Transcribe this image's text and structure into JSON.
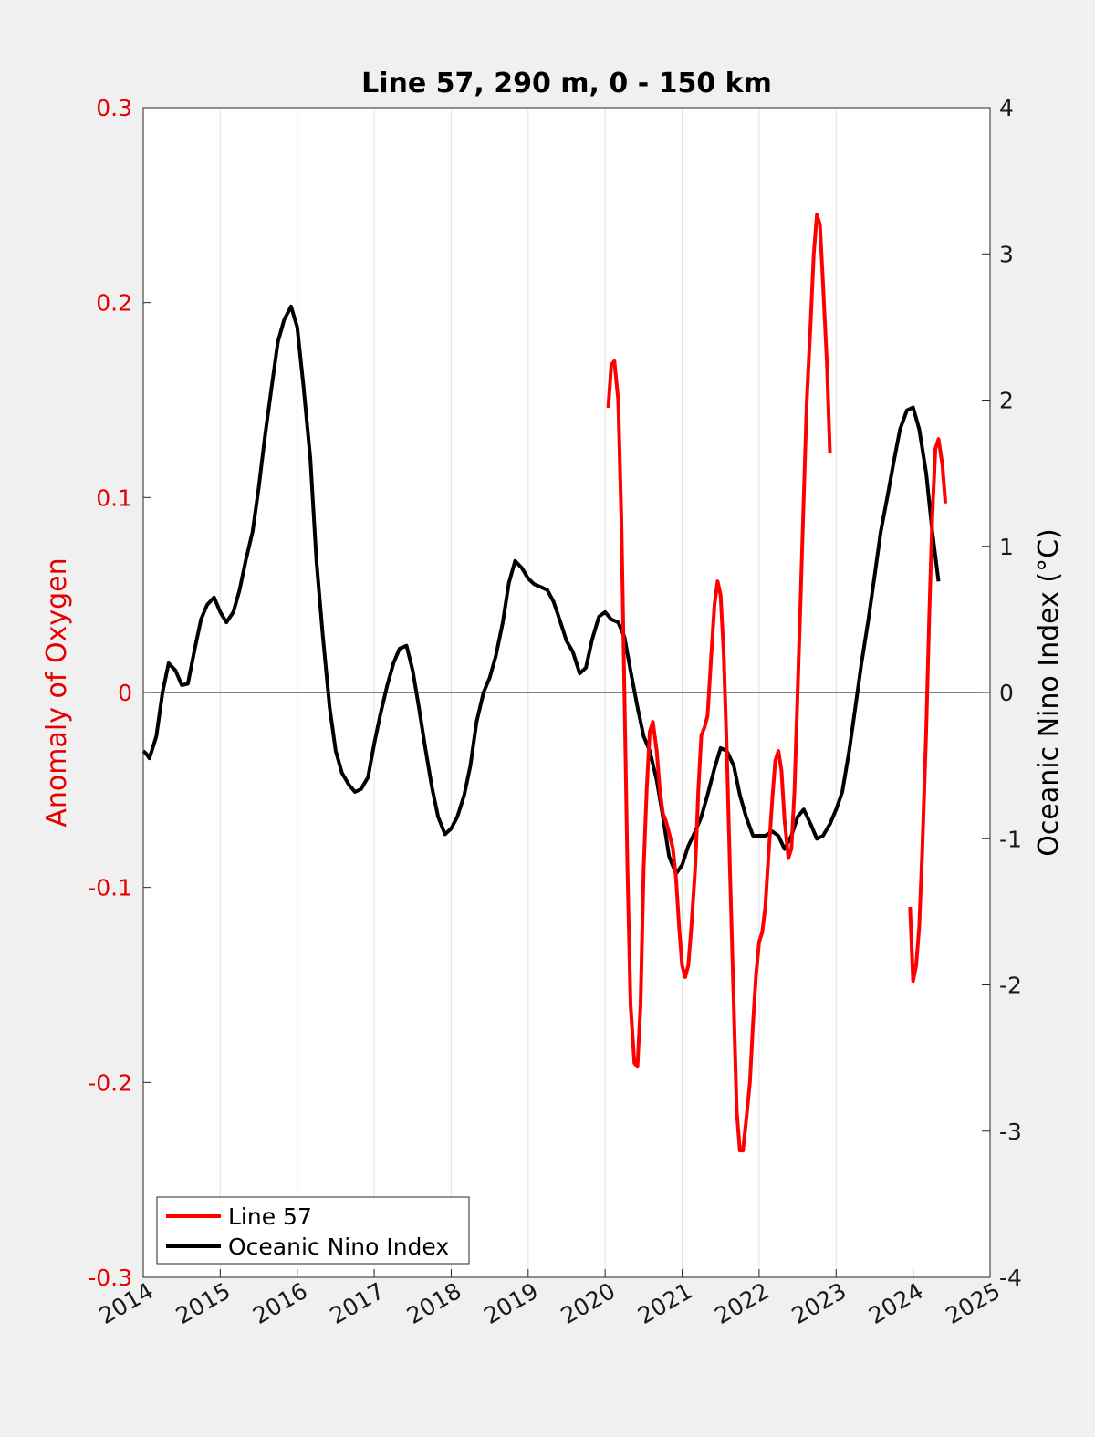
{
  "chart_data": {
    "type": "line",
    "title": "Line 57, 290 m, 0 - 150 km",
    "xlabel": "",
    "ylabel_left": "Anomaly of Oxygen",
    "ylabel_right": "Oceanic Nino Index (°C)",
    "xlim": [
      2014,
      2025
    ],
    "ylim_left": [
      -0.3,
      0.3
    ],
    "ylim_right": [
      -4,
      4
    ],
    "x_ticks": [
      "2014",
      "2015",
      "2016",
      "2017",
      "2018",
      "2019",
      "2020",
      "2021",
      "2022",
      "2023",
      "2024",
      "2025"
    ],
    "y_left_ticks": [
      "-0.3",
      "-0.2",
      "-0.1",
      "0",
      "0.1",
      "0.2",
      "0.3"
    ],
    "y_right_ticks": [
      "-4",
      "-3",
      "-2",
      "-1",
      "0",
      "1",
      "2",
      "3",
      "4"
    ],
    "grid": "vertical",
    "legend_position": "bottom-left",
    "colors": {
      "line57": "#ff0000",
      "oni": "#000000",
      "left_axis": "#e60000"
    },
    "series": [
      {
        "name": "Line 57",
        "axis": "left",
        "segments": [
          [
            [
              2020.04,
              0.146
            ],
            [
              2020.08,
              0.168
            ],
            [
              2020.12,
              0.17
            ],
            [
              2020.17,
              0.15
            ],
            [
              2020.21,
              0.09
            ],
            [
              2020.25,
              0.0
            ],
            [
              2020.29,
              -0.09
            ],
            [
              2020.33,
              -0.16
            ],
            [
              2020.38,
              -0.19
            ],
            [
              2020.42,
              -0.192
            ],
            [
              2020.46,
              -0.16
            ],
            [
              2020.5,
              -0.09
            ],
            [
              2020.54,
              -0.05
            ],
            [
              2020.58,
              -0.02
            ],
            [
              2020.62,
              -0.015
            ],
            [
              2020.67,
              -0.03
            ],
            [
              2020.71,
              -0.05
            ],
            [
              2020.75,
              -0.062
            ],
            [
              2020.79,
              -0.066
            ],
            [
              2020.83,
              -0.072
            ],
            [
              2020.88,
              -0.08
            ],
            [
              2020.92,
              -0.095
            ],
            [
              2020.96,
              -0.12
            ],
            [
              2021.0,
              -0.14
            ],
            [
              2021.04,
              -0.146
            ],
            [
              2021.08,
              -0.14
            ],
            [
              2021.12,
              -0.12
            ],
            [
              2021.17,
              -0.09
            ],
            [
              2021.21,
              -0.05
            ],
            [
              2021.25,
              -0.022
            ],
            [
              2021.29,
              -0.018
            ],
            [
              2021.33,
              -0.012
            ],
            [
              2021.38,
              0.02
            ],
            [
              2021.42,
              0.045
            ],
            [
              2021.46,
              0.057
            ],
            [
              2021.5,
              0.05
            ],
            [
              2021.54,
              0.02
            ],
            [
              2021.58,
              -0.03
            ],
            [
              2021.62,
              -0.09
            ],
            [
              2021.67,
              -0.16
            ],
            [
              2021.71,
              -0.215
            ],
            [
              2021.75,
              -0.235
            ],
            [
              2021.79,
              -0.235
            ],
            [
              2021.83,
              -0.22
            ],
            [
              2021.88,
              -0.2
            ],
            [
              2021.92,
              -0.17
            ],
            [
              2021.96,
              -0.145
            ],
            [
              2022.0,
              -0.128
            ],
            [
              2022.04,
              -0.123
            ],
            [
              2022.08,
              -0.11
            ],
            [
              2022.12,
              -0.085
            ],
            [
              2022.17,
              -0.055
            ],
            [
              2022.21,
              -0.035
            ],
            [
              2022.25,
              -0.03
            ],
            [
              2022.29,
              -0.04
            ],
            [
              2022.33,
              -0.065
            ],
            [
              2022.38,
              -0.085
            ],
            [
              2022.42,
              -0.08
            ],
            [
              2022.46,
              -0.05
            ],
            [
              2022.5,
              0.0
            ],
            [
              2022.54,
              0.05
            ],
            [
              2022.58,
              0.1
            ],
            [
              2022.62,
              0.15
            ],
            [
              2022.67,
              0.19
            ],
            [
              2022.71,
              0.225
            ],
            [
              2022.75,
              0.245
            ],
            [
              2022.79,
              0.24
            ],
            [
              2022.83,
              0.21
            ],
            [
              2022.88,
              0.17
            ],
            [
              2022.92,
              0.123
            ]
          ],
          [
            [
              2023.96,
              -0.11
            ],
            [
              2024.0,
              -0.148
            ],
            [
              2024.04,
              -0.14
            ],
            [
              2024.08,
              -0.12
            ],
            [
              2024.12,
              -0.08
            ],
            [
              2024.17,
              -0.02
            ],
            [
              2024.21,
              0.04
            ],
            [
              2024.25,
              0.09
            ],
            [
              2024.29,
              0.125
            ],
            [
              2024.33,
              0.13
            ],
            [
              2024.38,
              0.117
            ],
            [
              2024.42,
              0.097
            ]
          ]
        ]
      },
      {
        "name": "Oceanic Nino Index",
        "axis": "right",
        "segments": [
          [
            [
              2014.0,
              -0.4
            ],
            [
              2014.04,
              -0.42
            ],
            [
              2014.08,
              -0.45
            ],
            [
              2014.17,
              -0.3
            ],
            [
              2014.25,
              0.0
            ],
            [
              2014.33,
              0.2
            ],
            [
              2014.42,
              0.15
            ],
            [
              2014.5,
              0.05
            ],
            [
              2014.58,
              0.06
            ],
            [
              2014.67,
              0.3
            ],
            [
              2014.75,
              0.5
            ],
            [
              2014.83,
              0.6
            ],
            [
              2014.92,
              0.65
            ],
            [
              2015.0,
              0.55
            ],
            [
              2015.08,
              0.48
            ],
            [
              2015.17,
              0.55
            ],
            [
              2015.25,
              0.7
            ],
            [
              2015.33,
              0.9
            ],
            [
              2015.42,
              1.1
            ],
            [
              2015.5,
              1.4
            ],
            [
              2015.58,
              1.75
            ],
            [
              2015.67,
              2.1
            ],
            [
              2015.75,
              2.4
            ],
            [
              2015.83,
              2.55
            ],
            [
              2015.92,
              2.64
            ],
            [
              2016.0,
              2.5
            ],
            [
              2016.08,
              2.1
            ],
            [
              2016.17,
              1.6
            ],
            [
              2016.25,
              0.9
            ],
            [
              2016.33,
              0.4
            ],
            [
              2016.42,
              -0.1
            ],
            [
              2016.5,
              -0.4
            ],
            [
              2016.58,
              -0.55
            ],
            [
              2016.67,
              -0.63
            ],
            [
              2016.75,
              -0.68
            ],
            [
              2016.83,
              -0.66
            ],
            [
              2016.92,
              -0.58
            ],
            [
              2017.0,
              -0.35
            ],
            [
              2017.08,
              -0.15
            ],
            [
              2017.17,
              0.05
            ],
            [
              2017.25,
              0.2
            ],
            [
              2017.33,
              0.3
            ],
            [
              2017.42,
              0.32
            ],
            [
              2017.5,
              0.15
            ],
            [
              2017.58,
              -0.1
            ],
            [
              2017.67,
              -0.4
            ],
            [
              2017.75,
              -0.65
            ],
            [
              2017.83,
              -0.85
            ],
            [
              2017.92,
              -0.97
            ],
            [
              2018.0,
              -0.93
            ],
            [
              2018.08,
              -0.85
            ],
            [
              2018.17,
              -0.7
            ],
            [
              2018.25,
              -0.5
            ],
            [
              2018.33,
              -0.2
            ],
            [
              2018.42,
              0.0
            ],
            [
              2018.5,
              0.1
            ],
            [
              2018.58,
              0.25
            ],
            [
              2018.67,
              0.48
            ],
            [
              2018.75,
              0.75
            ],
            [
              2018.83,
              0.9
            ],
            [
              2018.92,
              0.85
            ],
            [
              2019.0,
              0.78
            ],
            [
              2019.08,
              0.74
            ],
            [
              2019.17,
              0.72
            ],
            [
              2019.25,
              0.7
            ],
            [
              2019.33,
              0.62
            ],
            [
              2019.42,
              0.48
            ],
            [
              2019.5,
              0.35
            ],
            [
              2019.58,
              0.28
            ],
            [
              2019.67,
              0.13
            ],
            [
              2019.75,
              0.17
            ],
            [
              2019.83,
              0.36
            ],
            [
              2019.92,
              0.52
            ],
            [
              2020.0,
              0.55
            ],
            [
              2020.08,
              0.5
            ],
            [
              2020.17,
              0.48
            ],
            [
              2020.25,
              0.38
            ],
            [
              2020.33,
              0.15
            ],
            [
              2020.42,
              -0.1
            ],
            [
              2020.5,
              -0.3
            ],
            [
              2020.58,
              -0.4
            ],
            [
              2020.67,
              -0.6
            ],
            [
              2020.75,
              -0.85
            ],
            [
              2020.83,
              -1.12
            ],
            [
              2020.92,
              -1.24
            ],
            [
              2021.0,
              -1.18
            ],
            [
              2021.08,
              -1.05
            ],
            [
              2021.17,
              -0.95
            ],
            [
              2021.25,
              -0.85
            ],
            [
              2021.33,
              -0.7
            ],
            [
              2021.42,
              -0.52
            ],
            [
              2021.5,
              -0.38
            ],
            [
              2021.58,
              -0.4
            ],
            [
              2021.67,
              -0.5
            ],
            [
              2021.75,
              -0.7
            ],
            [
              2021.83,
              -0.85
            ],
            [
              2021.92,
              -0.98
            ],
            [
              2022.0,
              -0.98
            ],
            [
              2022.08,
              -0.98
            ],
            [
              2022.17,
              -0.95
            ],
            [
              2022.25,
              -0.98
            ],
            [
              2022.33,
              -1.07
            ],
            [
              2022.42,
              -0.98
            ],
            [
              2022.5,
              -0.85
            ],
            [
              2022.58,
              -0.8
            ],
            [
              2022.67,
              -0.9
            ],
            [
              2022.75,
              -1.0
            ],
            [
              2022.83,
              -0.98
            ],
            [
              2022.92,
              -0.9
            ],
            [
              2023.0,
              -0.8
            ],
            [
              2023.08,
              -0.68
            ],
            [
              2023.17,
              -0.4
            ],
            [
              2023.25,
              -0.1
            ],
            [
              2023.33,
              0.2
            ],
            [
              2023.42,
              0.5
            ],
            [
              2023.5,
              0.8
            ],
            [
              2023.58,
              1.1
            ],
            [
              2023.67,
              1.35
            ],
            [
              2023.75,
              1.58
            ],
            [
              2023.83,
              1.8
            ],
            [
              2023.92,
              1.93
            ],
            [
              2024.0,
              1.95
            ],
            [
              2024.08,
              1.8
            ],
            [
              2024.17,
              1.5
            ],
            [
              2024.25,
              1.1
            ],
            [
              2024.33,
              0.76
            ]
          ]
        ]
      }
    ]
  }
}
